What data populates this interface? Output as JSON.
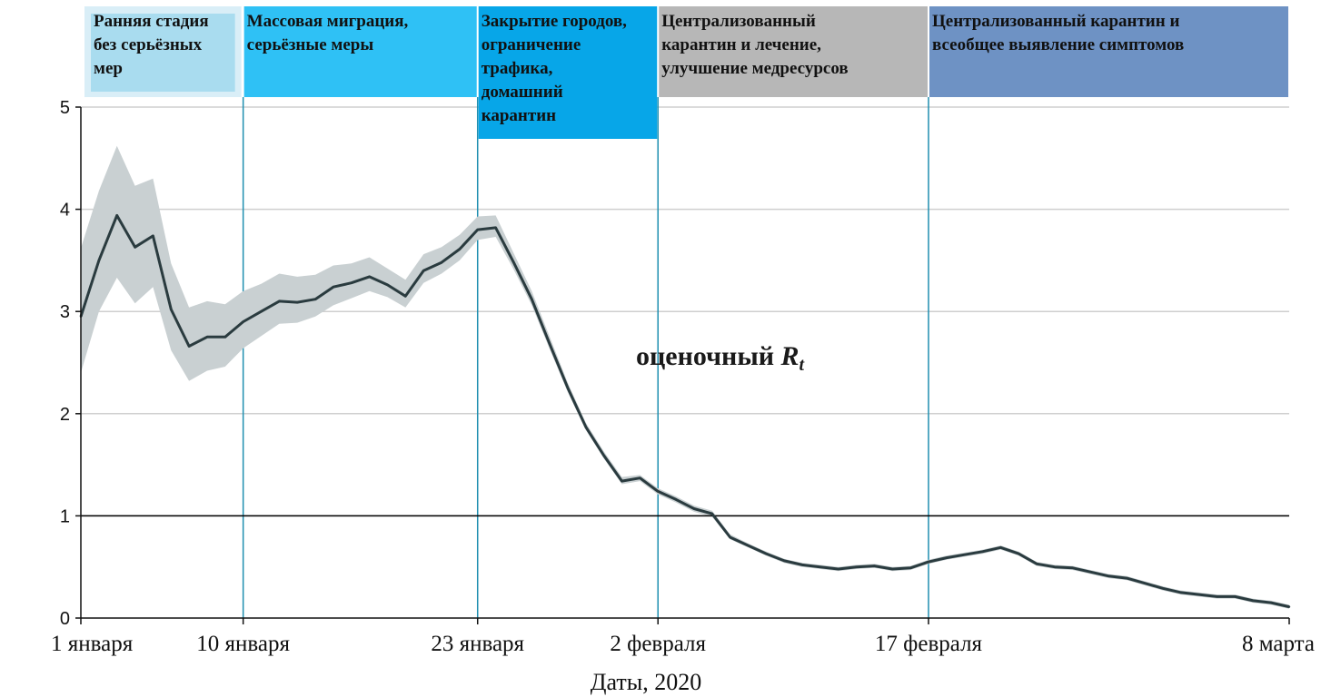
{
  "chart_data": {
    "type": "area",
    "xlabel": "Даты, 2020",
    "ylabel": "",
    "ylim": [
      0,
      5
    ],
    "yticks": [
      0,
      1,
      2,
      3,
      4,
      5
    ],
    "grid": true,
    "reference_line": 1,
    "x_start": "2020-01-01",
    "x_end": "2020-03-08",
    "xticks": [
      {
        "date": "2020-01-01",
        "label": "1 января"
      },
      {
        "date": "2020-01-10",
        "label": "10 января"
      },
      {
        "date": "2020-01-23",
        "label": "23 января"
      },
      {
        "date": "2020-02-02",
        "label": "2 февраля"
      },
      {
        "date": "2020-02-17",
        "label": "17 февраля"
      },
      {
        "date": "2020-03-08",
        "label": "8 марта"
      }
    ],
    "annotation": {
      "text": "оценочный ",
      "symbol": "R",
      "subscript": "t"
    },
    "phases": [
      {
        "start": "2020-01-01",
        "end": "2020-01-10",
        "label_lines": [
          "Ранняя стадия",
          "без серьёзных",
          "мер"
        ],
        "color": "#a9dcef"
      },
      {
        "start": "2020-01-10",
        "end": "2020-01-23",
        "label_lines": [
          "Массовая миграция,",
          "серьёзные меры"
        ],
        "color": "#2fc1f5"
      },
      {
        "start": "2020-01-23",
        "end": "2020-02-02",
        "label_lines": [
          "Закрытие городов,",
          "ограничение",
          "трафика,",
          "домашний",
          "карантин"
        ],
        "color": "#07a6e8"
      },
      {
        "start": "2020-02-02",
        "end": "2020-02-17",
        "label_lines": [
          "Централизованный",
          "карантин и лечение,",
          "улучшение медресурсов"
        ],
        "color": "#b7b7b7"
      },
      {
        "start": "2020-02-17",
        "end": "2020-03-08",
        "label_lines": [
          "Централизованный карантин и",
          "всеобщее выявление симптомов"
        ],
        "color": "#6e92c4"
      }
    ],
    "series": [
      {
        "x": [
          "2020-01-01",
          "2020-01-02",
          "2020-01-03",
          "2020-01-04",
          "2020-01-05",
          "2020-01-06",
          "2020-01-07",
          "2020-01-08",
          "2020-01-09",
          "2020-01-10",
          "2020-01-11",
          "2020-01-12",
          "2020-01-13",
          "2020-01-14",
          "2020-01-15",
          "2020-01-16",
          "2020-01-17",
          "2020-01-18",
          "2020-01-19",
          "2020-01-20",
          "2020-01-21",
          "2020-01-22",
          "2020-01-23",
          "2020-01-24",
          "2020-01-25",
          "2020-01-26",
          "2020-01-27",
          "2020-01-28",
          "2020-01-29",
          "2020-01-30",
          "2020-01-31",
          "2020-02-01",
          "2020-02-02",
          "2020-02-03",
          "2020-02-04",
          "2020-02-05",
          "2020-02-06",
          "2020-02-07",
          "2020-02-08",
          "2020-02-09",
          "2020-02-10",
          "2020-02-11",
          "2020-02-12",
          "2020-02-13",
          "2020-02-14",
          "2020-02-15",
          "2020-02-16",
          "2020-02-17",
          "2020-02-18",
          "2020-02-19",
          "2020-02-20",
          "2020-02-21",
          "2020-02-22",
          "2020-02-23",
          "2020-02-24",
          "2020-02-25",
          "2020-02-26",
          "2020-02-27",
          "2020-02-28",
          "2020-02-29",
          "2020-03-01",
          "2020-03-02",
          "2020-03-03",
          "2020-03-04",
          "2020-03-05",
          "2020-03-06",
          "2020-03-07",
          "2020-03-08"
        ],
        "y": [
          2.95,
          3.5,
          3.94,
          3.63,
          3.74,
          3.02,
          2.66,
          2.75,
          2.75,
          2.9,
          3.0,
          3.1,
          3.09,
          3.12,
          3.24,
          3.28,
          3.34,
          3.26,
          3.15,
          3.4,
          3.48,
          3.61,
          3.8,
          3.82,
          3.48,
          3.12,
          2.68,
          2.25,
          1.87,
          1.59,
          1.34,
          1.37,
          1.24,
          1.16,
          1.07,
          1.02,
          0.79,
          0.71,
          0.63,
          0.56,
          0.52,
          0.5,
          0.48,
          0.5,
          0.51,
          0.48,
          0.49,
          0.55,
          0.59,
          0.62,
          0.65,
          0.69,
          0.63,
          0.53,
          0.5,
          0.49,
          0.45,
          0.41,
          0.39,
          0.34,
          0.29,
          0.25,
          0.23,
          0.21,
          0.21,
          0.17,
          0.15,
          0.11
        ],
        "lower": [
          2.4,
          3.0,
          3.33,
          3.08,
          3.24,
          2.62,
          2.32,
          2.42,
          2.46,
          2.64,
          2.76,
          2.88,
          2.89,
          2.95,
          3.06,
          3.13,
          3.2,
          3.14,
          3.04,
          3.28,
          3.37,
          3.5,
          3.7,
          3.73,
          3.41,
          3.06,
          2.63,
          2.21,
          1.84,
          1.56,
          1.31,
          1.34,
          1.21,
          1.13,
          1.04,
          0.99,
          0.77,
          0.69,
          0.61,
          0.54,
          0.5,
          0.48,
          0.46,
          0.48,
          0.49,
          0.46,
          0.47,
          0.53,
          0.57,
          0.6,
          0.63,
          0.67,
          0.61,
          0.51,
          0.48,
          0.47,
          0.43,
          0.39,
          0.37,
          0.32,
          0.27,
          0.23,
          0.21,
          0.19,
          0.19,
          0.15,
          0.13,
          0.09
        ],
        "upper": [
          3.62,
          4.18,
          4.62,
          4.23,
          4.3,
          3.47,
          3.04,
          3.1,
          3.07,
          3.2,
          3.27,
          3.37,
          3.34,
          3.36,
          3.45,
          3.47,
          3.53,
          3.42,
          3.31,
          3.56,
          3.63,
          3.75,
          3.93,
          3.94,
          3.57,
          3.2,
          2.75,
          2.3,
          1.91,
          1.63,
          1.38,
          1.4,
          1.27,
          1.19,
          1.1,
          1.05,
          0.82,
          0.73,
          0.65,
          0.58,
          0.54,
          0.52,
          0.5,
          0.52,
          0.53,
          0.5,
          0.51,
          0.57,
          0.61,
          0.64,
          0.67,
          0.71,
          0.65,
          0.55,
          0.52,
          0.51,
          0.47,
          0.43,
          0.41,
          0.36,
          0.31,
          0.27,
          0.25,
          0.23,
          0.23,
          0.19,
          0.17,
          0.13
        ]
      }
    ],
    "colors": {
      "line": "#2a3b3f",
      "band": "#c9d0d2",
      "grid": "#cfcfcf",
      "vline": "#1f8fb0",
      "axis": "#111111",
      "ref": "#000000"
    }
  }
}
